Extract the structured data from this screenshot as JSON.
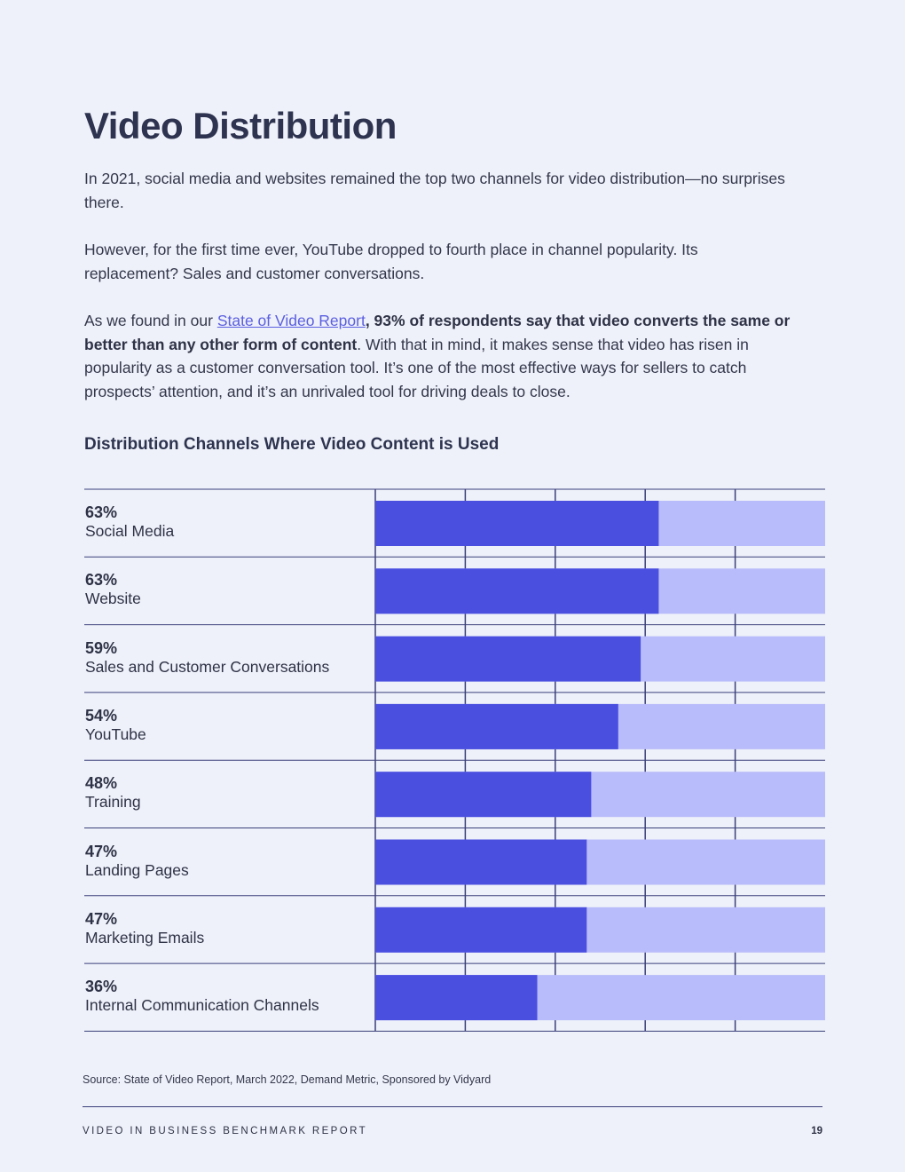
{
  "page": {
    "title": "Video Distribution",
    "para1": "In 2021, social media and websites remained the top two channels for video distribution—no surprises there.",
    "para2": "However, for the first time ever, YouTube dropped to fourth place in channel popularity. Its replacement? Sales and customer conversations.",
    "para3_prefix": "As we found in our ",
    "para3_link": "State of Video Report",
    "para3_bold": ", 93% of respondents say that video converts the same or better than any other form of content",
    "para3_rest": ". With that in mind, it makes sense that video has risen in popularity as a customer conversation tool. It’s one of the most effective ways for sellers to catch prospects’ attention, and it’s an unrivaled tool for driving deals to close.",
    "source": "Source: State of Video Report, March 2022, Demand Metric, Sponsored by Vidyard",
    "footer_label": "VIDEO IN BUSINESS BENCHMARK REPORT",
    "page_number": "19"
  },
  "colors": {
    "bar_fill": "#4a4fe0",
    "bar_track": "#b9bcfa",
    "rule": "#3a3f7a"
  },
  "chart_data": {
    "type": "bar",
    "orientation": "horizontal",
    "title": "Distribution Channels Where Video Content is Used",
    "categories": [
      "Social Media",
      "Website",
      "Sales and Customer Conversations",
      "YouTube",
      "Training",
      "Landing Pages",
      "Marketing Emails",
      "Internal Communication Channels"
    ],
    "value_labels": [
      "63%",
      "63%",
      "59%",
      "54%",
      "48%",
      "47%",
      "47%",
      "36%"
    ],
    "values": [
      63,
      63,
      59,
      54,
      48,
      47,
      47,
      36
    ],
    "xlim": [
      0,
      100
    ],
    "grid": true
  }
}
